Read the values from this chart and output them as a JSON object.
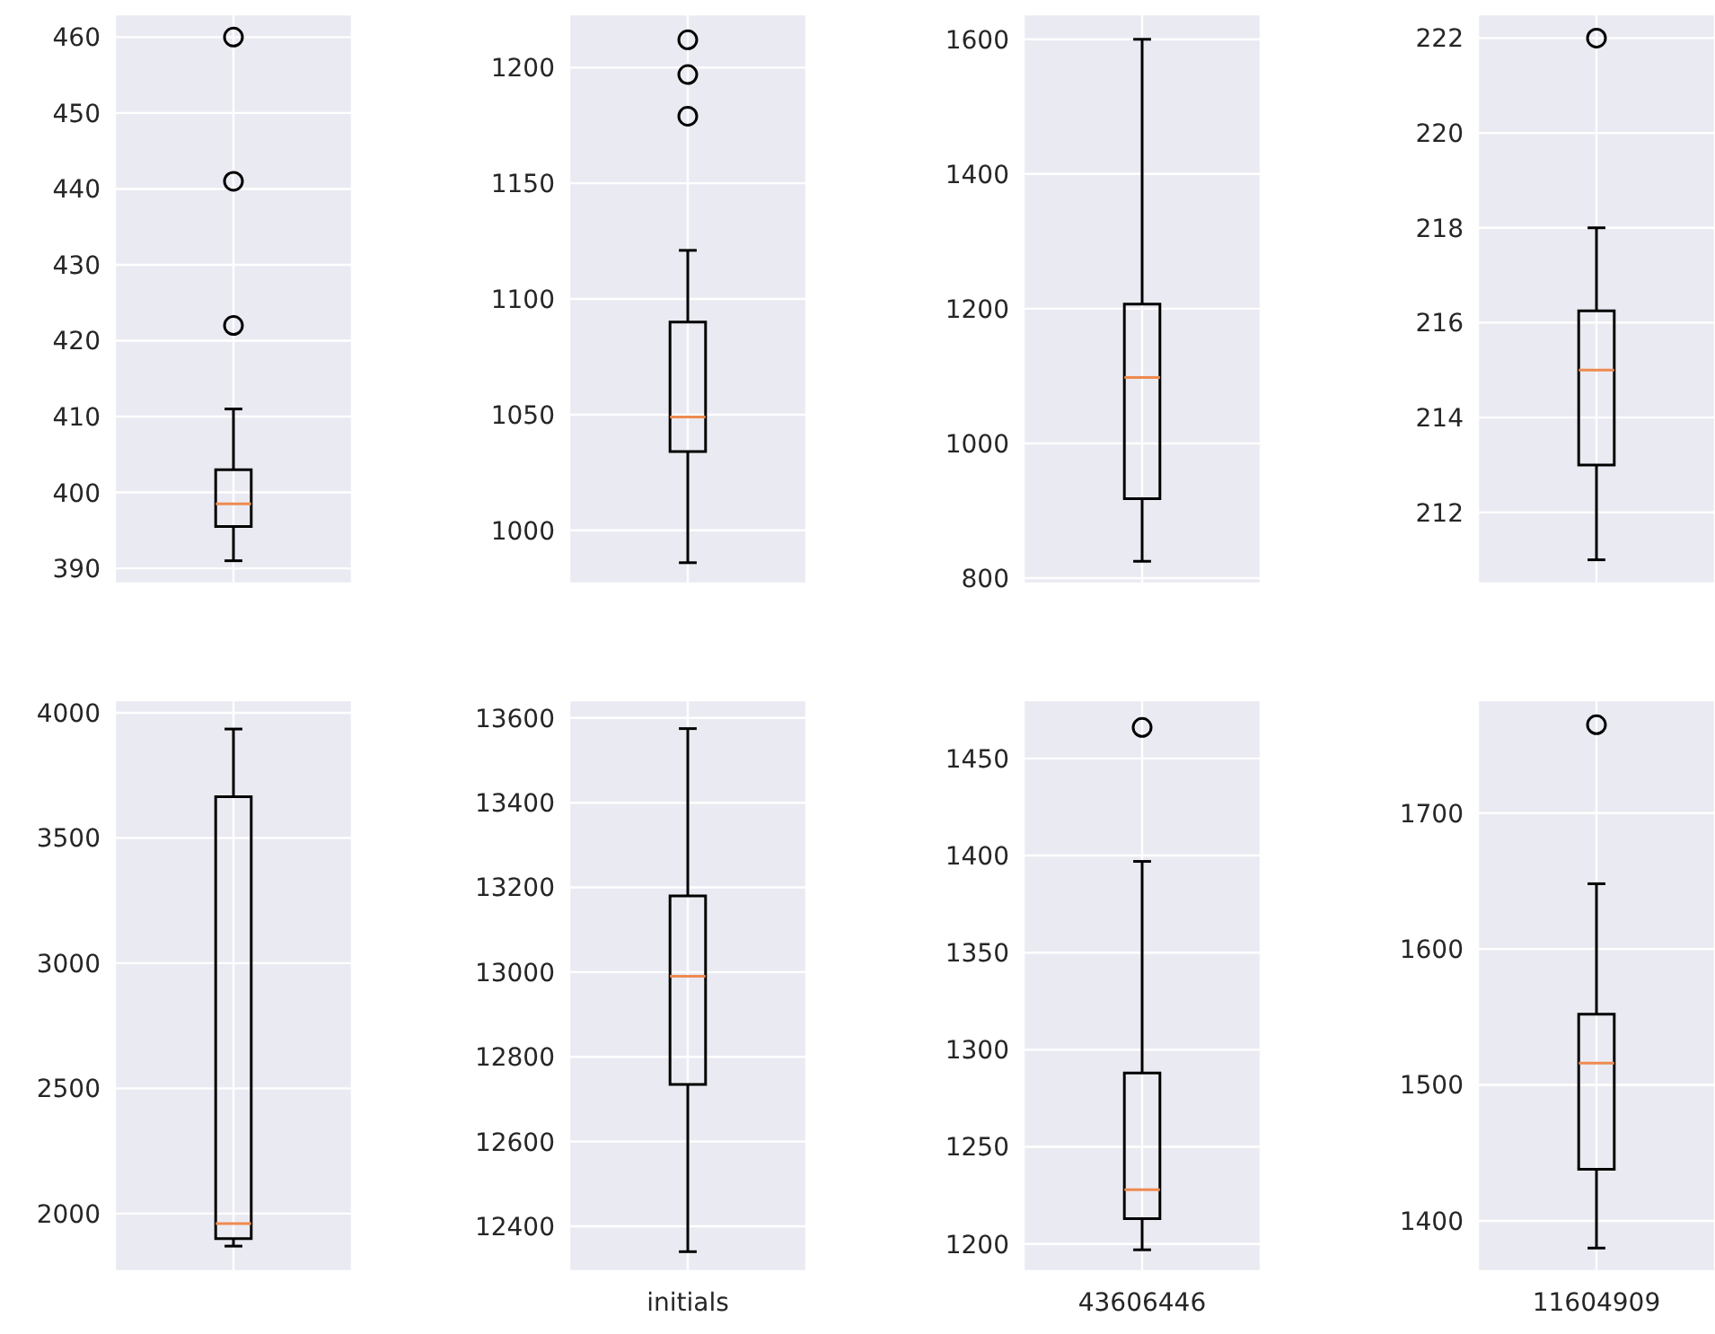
{
  "chart_data": [
    {
      "type": "box",
      "categories": [
        null
      ],
      "boxes": [
        {
          "low": 391,
          "q1": 395.5,
          "median": 398.5,
          "q3": 403,
          "high": 411,
          "outliers": [
            422,
            441,
            460
          ]
        }
      ],
      "ylim": [
        388,
        463
      ],
      "yticks": [
        390,
        400,
        410,
        420,
        430,
        440,
        450,
        460
      ],
      "grid": true
    },
    {
      "type": "box",
      "categories": [
        null
      ],
      "boxes": [
        {
          "low": 986,
          "q1": 1034,
          "median": 1049,
          "q3": 1090,
          "high": 1121,
          "outliers": [
            1179,
            1197,
            1212
          ]
        }
      ],
      "ylim": [
        977,
        1223
      ],
      "yticks": [
        1000,
        1050,
        1100,
        1150,
        1200
      ],
      "grid": true
    },
    {
      "type": "box",
      "categories": [
        null
      ],
      "boxes": [
        {
          "low": 825,
          "q1": 918,
          "median": 1098,
          "q3": 1207,
          "high": 1600
        }
      ],
      "ylim": [
        792,
        1637
      ],
      "yticks": [
        800,
        1000,
        1200,
        1400,
        1600
      ],
      "grid": true
    },
    {
      "type": "box",
      "categories": [
        null
      ],
      "boxes": [
        {
          "low": 211,
          "q1": 213,
          "median": 215,
          "q3": 216.25,
          "high": 218,
          "outliers": [
            222
          ]
        }
      ],
      "ylim": [
        210.5,
        222.5
      ],
      "yticks": [
        212,
        214,
        216,
        218,
        220,
        222
      ],
      "grid": true
    },
    {
      "type": "box",
      "categories": [
        null
      ],
      "boxes": [
        {
          "low": 1870,
          "q1": 1900,
          "median": 1960,
          "q3": 3665,
          "high": 3935
        }
      ],
      "ylim": [
        1770,
        4050
      ],
      "yticks": [
        2000,
        2500,
        3000,
        3500,
        4000
      ],
      "grid": true
    },
    {
      "type": "box",
      "categories": [
        "initials"
      ],
      "boxes": [
        {
          "low": 12340,
          "q1": 12735,
          "median": 12990,
          "q3": 13180,
          "high": 13575
        }
      ],
      "ylim": [
        12294,
        13642
      ],
      "yticks": [
        12400,
        12600,
        12800,
        13000,
        13200,
        13400,
        13600
      ],
      "grid": true
    },
    {
      "type": "box",
      "categories": [
        "43606446"
      ],
      "boxes": [
        {
          "low": 1197,
          "q1": 1213,
          "median": 1228,
          "q3": 1288,
          "high": 1397,
          "outliers": [
            1466
          ]
        }
      ],
      "ylim": [
        1186,
        1480
      ],
      "yticks": [
        1200,
        1250,
        1300,
        1350,
        1400,
        1450
      ],
      "grid": true
    },
    {
      "type": "box",
      "categories": [
        "11604909"
      ],
      "boxes": [
        {
          "low": 1380,
          "q1": 1438,
          "median": 1516,
          "q3": 1552,
          "high": 1648,
          "outliers": [
            1765
          ]
        }
      ],
      "ylim": [
        1363,
        1783
      ],
      "yticks": [
        1400,
        1500,
        1600,
        1700
      ],
      "grid": true
    }
  ]
}
